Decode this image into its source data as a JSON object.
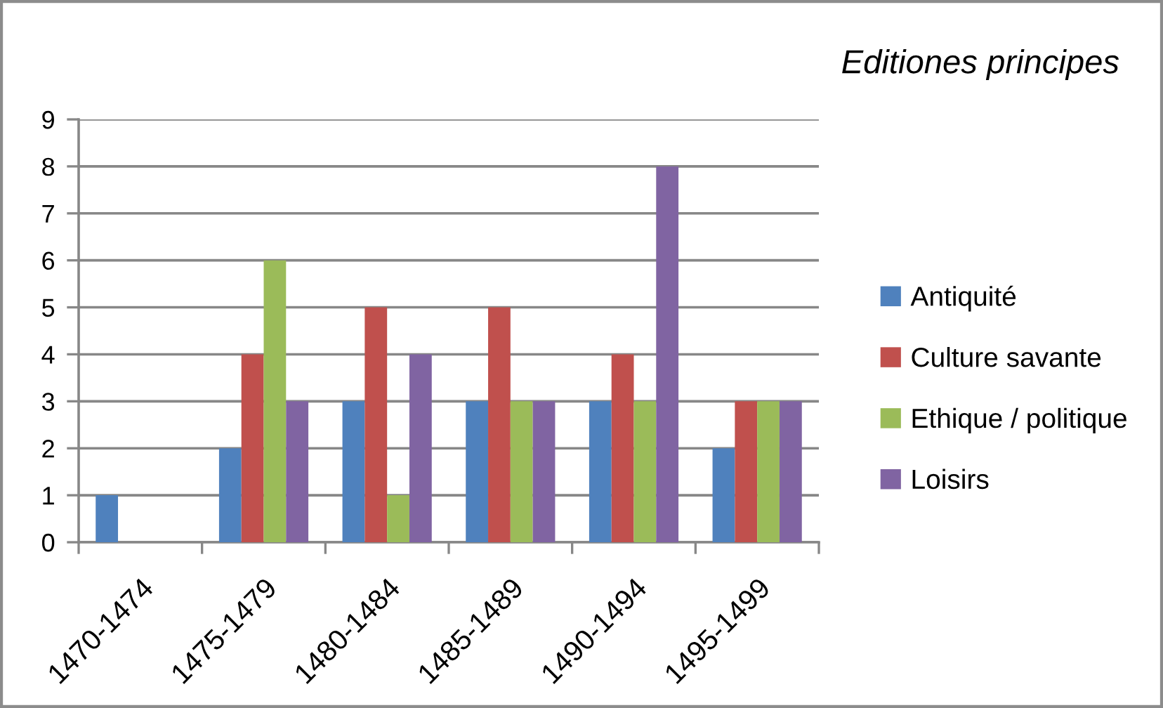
{
  "chart_data": {
    "type": "bar",
    "title": "Editiones principes",
    "categories": [
      "1470-1474",
      "1475-1479",
      "1480-1484",
      "1485-1489",
      "1490-1494",
      "1495-1499"
    ],
    "series": [
      {
        "name": "Antiquité",
        "color": "#4f81bd",
        "values": [
          1,
          2,
          3,
          3,
          3,
          2
        ]
      },
      {
        "name": "Culture savante",
        "color": "#c0504d",
        "values": [
          0,
          4,
          5,
          5,
          4,
          3
        ]
      },
      {
        "name": "Ethique / politique",
        "color": "#9bbb59",
        "values": [
          0,
          6,
          1,
          3,
          3,
          3
        ]
      },
      {
        "name": "Loisirs",
        "color": "#8064a2",
        "values": [
          0,
          3,
          4,
          3,
          8,
          3
        ]
      }
    ],
    "ylim": [
      0,
      9
    ],
    "yticks": [
      0,
      1,
      2,
      3,
      4,
      5,
      6,
      7,
      8,
      9
    ],
    "grid": "y",
    "legend": "right"
  }
}
